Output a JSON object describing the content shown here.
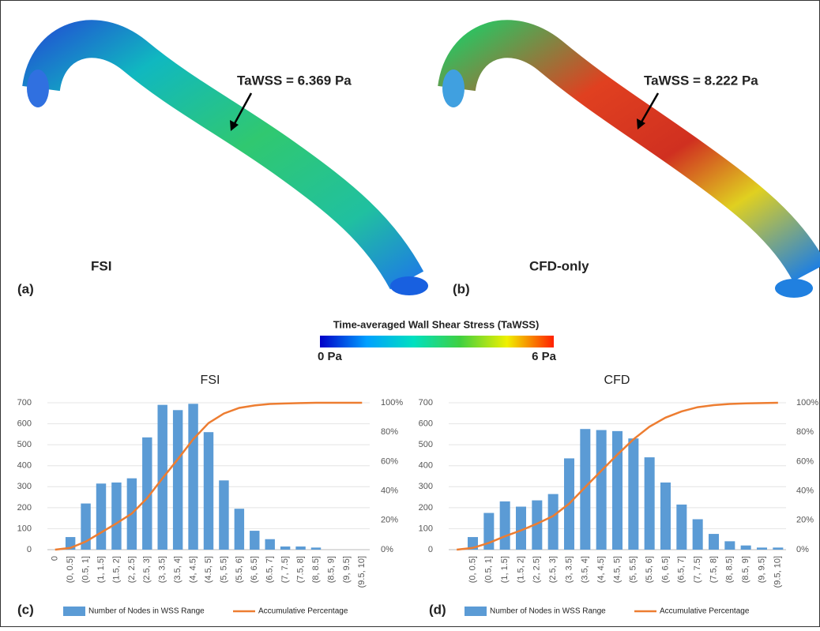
{
  "figure": {
    "panel_a": {
      "label": "(a)",
      "name": "FSI",
      "annotation": "TaWSS = 6.369 Pa"
    },
    "panel_b": {
      "label": "(b)",
      "name": "CFD-only",
      "annotation": "TaWSS = 8.222 Pa"
    },
    "colorbar": {
      "title": "Time-averaged Wall Shear Stress (TaWSS)",
      "min_label": "0 Pa",
      "max_label": "6 Pa"
    },
    "panel_c": {
      "label": "(c)"
    },
    "panel_d": {
      "label": "(d)"
    }
  },
  "chart_data": [
    {
      "type": "bar-line",
      "title": "FSI",
      "categories": [
        "0",
        "(0, 0.5]",
        "(0.5, 1]",
        "(1, 1.5]",
        "(1.5, 2]",
        "(2, 2.5]",
        "(2.5, 3]",
        "(3, 3.5]",
        "(3.5, 4]",
        "(4, 4.5]",
        "(4.5, 5]",
        "(5, 5.5]",
        "(5.5, 6]",
        "(6, 6.5]",
        "(6.5, 7]",
        "(7, 7.5]",
        "(7.5, 8]",
        "(8, 8.5]",
        "(8.5, 9]",
        "(9, 9.5]",
        "(9.5, 10]"
      ],
      "series": [
        {
          "name": "Number of Nodes in WSS Range",
          "color": "#5b9bd5",
          "values": [
            0,
            60,
            220,
            315,
            320,
            340,
            535,
            690,
            665,
            695,
            560,
            330,
            195,
            90,
            50,
            15,
            15,
            10,
            0,
            0,
            0
          ]
        },
        {
          "name": "Accumulative Percentage",
          "color": "#ed7d31",
          "axis": "y2",
          "values": [
            0,
            1.2,
            5.5,
            11.7,
            17.9,
            24.6,
            35.1,
            48.6,
            61.6,
            75.2,
            86.2,
            92.7,
            96.5,
            98.2,
            99.2,
            99.5,
            99.8,
            100,
            100,
            100,
            100
          ]
        }
      ],
      "ylim": [
        0,
        700
      ],
      "yticks": [
        0,
        100,
        200,
        300,
        400,
        500,
        600,
        700
      ],
      "y2lim": [
        0,
        100
      ],
      "y2ticks": [
        {
          "value": 0,
          "label": "0%"
        },
        {
          "value": 20,
          "label": "20%"
        },
        {
          "value": 40,
          "label": "40%"
        },
        {
          "value": 60,
          "label": "60%"
        },
        {
          "value": 80,
          "label": "80%"
        },
        {
          "value": 100,
          "label": "100%"
        }
      ],
      "grid": true,
      "legend": "bottom"
    },
    {
      "type": "bar-line",
      "title": "CFD",
      "categories": [
        null,
        "(0, 0.5]",
        "(0.5, 1]",
        "(1, 1.5]",
        "(1.5, 2]",
        "(2, 2.5]",
        "(2.5, 3]",
        "(3, 3.5]",
        "(3.5, 4]",
        "(4, 4.5]",
        "(4.5, 5]",
        "(5, 5.5]",
        "(5.5, 6]",
        "(6, 6.5]",
        "(6.5, 7]",
        "(7, 7.5]",
        "(7.5, 8]",
        "(8, 8.5]",
        "(8.5, 9]",
        "(9, 9.5]",
        "(9.5, 10]"
      ],
      "series": [
        {
          "name": "Number of Nodes in WSS Range",
          "color": "#5b9bd5",
          "values": [
            0,
            60,
            175,
            230,
            205,
            235,
            265,
            435,
            575,
            570,
            565,
            530,
            440,
            320,
            215,
            145,
            75,
            40,
            20,
            10,
            10
          ]
        },
        {
          "name": "Accumulative Percentage",
          "color": "#ed7d31",
          "axis": "y2",
          "values": [
            0,
            1.2,
            4.6,
            9.1,
            13.1,
            17.7,
            22.9,
            31.3,
            42.6,
            53.7,
            64.7,
            75.1,
            83.7,
            89.9,
            94.1,
            97.0,
            98.4,
            99.2,
            99.6,
            99.8,
            100
          ]
        }
      ],
      "ylim": [
        0,
        700
      ],
      "yticks": [
        0,
        100,
        200,
        300,
        400,
        500,
        600,
        700
      ],
      "y2lim": [
        0,
        100
      ],
      "y2ticks": [
        {
          "value": 0,
          "label": "0%"
        },
        {
          "value": 20,
          "label": "20%"
        },
        {
          "value": 40,
          "label": "40%"
        },
        {
          "value": 60,
          "label": "60%"
        },
        {
          "value": 80,
          "label": "80%"
        },
        {
          "value": 100,
          "label": "100%"
        }
      ],
      "grid": true,
      "legend": "bottom"
    }
  ]
}
